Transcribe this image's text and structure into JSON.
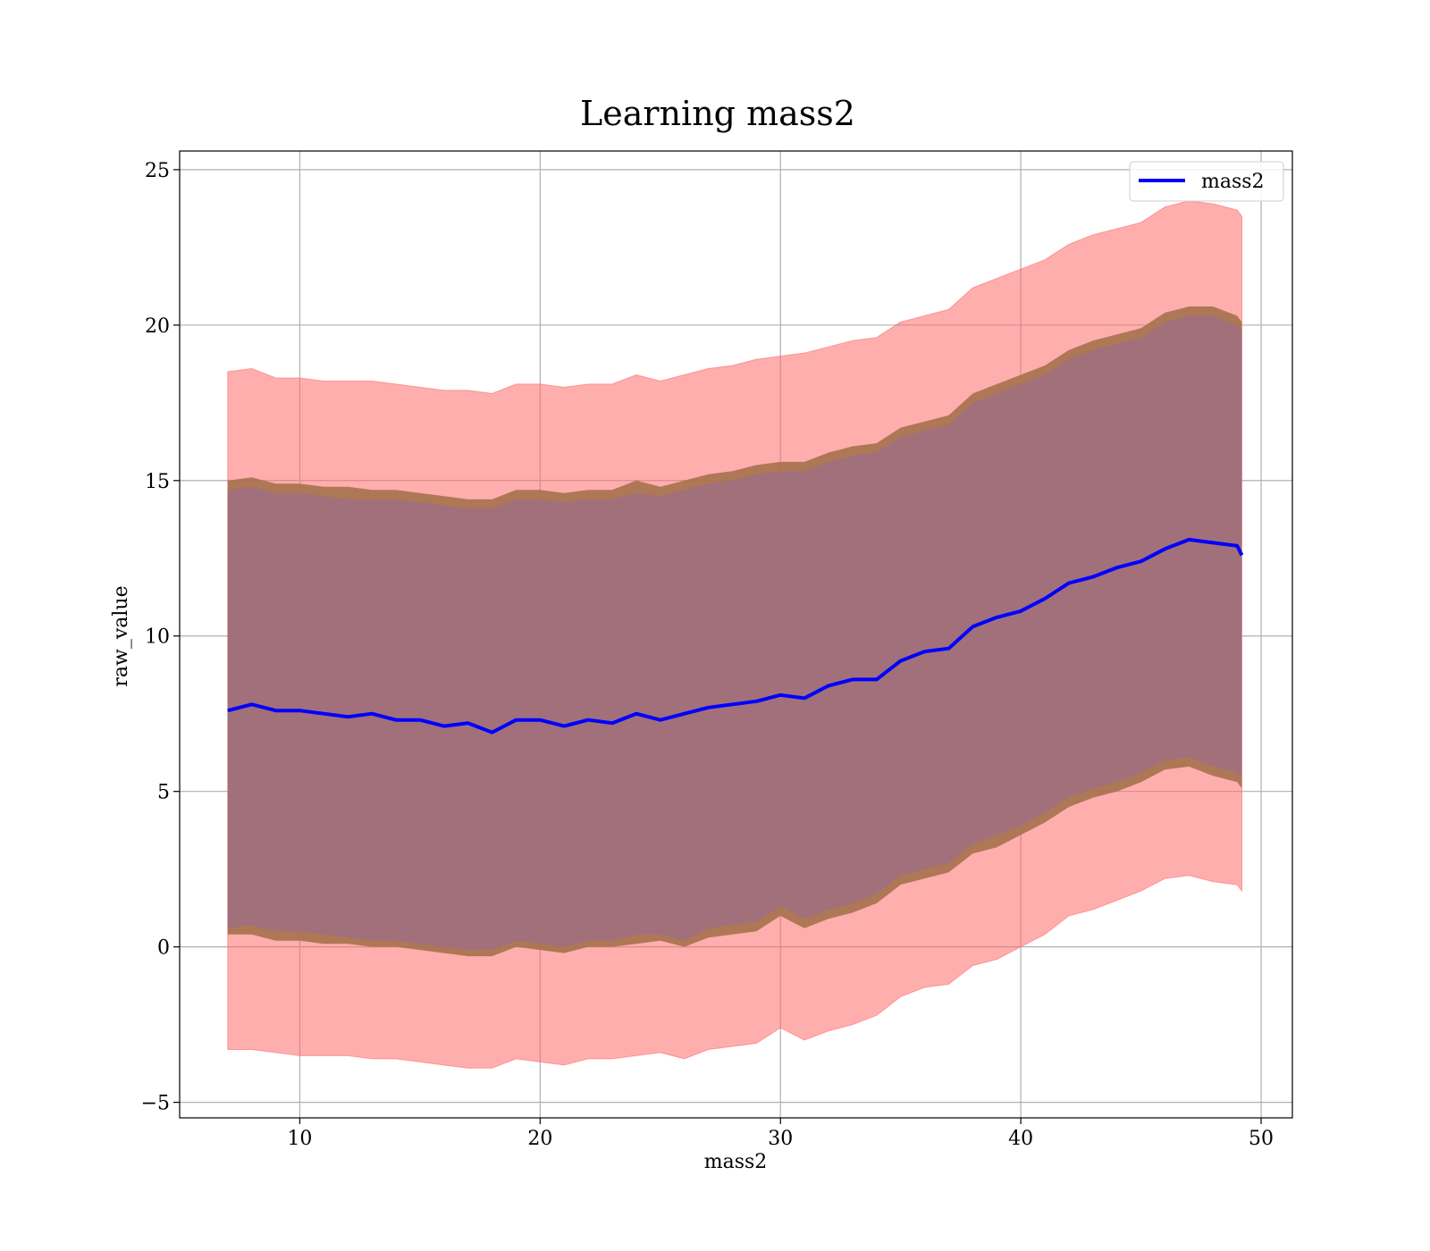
{
  "chart_data": {
    "type": "line",
    "title": "Learning mass2",
    "xlabel": "mass2",
    "ylabel": "raw_value",
    "xlim": [
      5,
      51.3
    ],
    "ylim": [
      -5.5,
      25.6
    ],
    "xticks": [
      10,
      20,
      30,
      40,
      50
    ],
    "yticks": [
      -5,
      0,
      5,
      10,
      15,
      20,
      25
    ],
    "xtick_labels": [
      "10",
      "20",
      "30",
      "40",
      "50"
    ],
    "ytick_labels": [
      "−5",
      "0",
      "5",
      "10",
      "15",
      "20",
      "25"
    ],
    "grid": true,
    "legend": {
      "position": "top-right",
      "entries": [
        "mass2"
      ]
    },
    "colors": {
      "line": "#0000ff",
      "band_outer": "#ff6b6b",
      "band_middle": "#a5714d",
      "band_inner": "#a2707a",
      "grid": "#b0b0b0"
    },
    "x": [
      7.0,
      8.0,
      9.0,
      10.0,
      11.0,
      12.0,
      13.0,
      14.0,
      15.0,
      16.0,
      17.0,
      18.0,
      19.0,
      20.0,
      21.0,
      22.0,
      23.0,
      24.0,
      25.0,
      26.0,
      27.0,
      28.0,
      29.0,
      30.0,
      31.0,
      32.0,
      33.0,
      34.0,
      35.0,
      36.0,
      37.0,
      38.0,
      39.0,
      40.0,
      41.0,
      42.0,
      43.0,
      44.0,
      45.0,
      46.0,
      47.0,
      48.0,
      49.0,
      49.2
    ],
    "series": [
      {
        "name": "mass2",
        "values": [
          7.6,
          7.8,
          7.6,
          7.6,
          7.5,
          7.4,
          7.5,
          7.3,
          7.3,
          7.1,
          7.2,
          6.9,
          7.3,
          7.3,
          7.1,
          7.3,
          7.2,
          7.5,
          7.3,
          7.5,
          7.7,
          7.8,
          7.9,
          8.1,
          8.0,
          8.4,
          8.6,
          8.6,
          9.2,
          9.5,
          9.6,
          10.3,
          10.6,
          10.8,
          11.2,
          11.7,
          11.9,
          12.2,
          12.4,
          12.8,
          13.1,
          13.0,
          12.9,
          12.6
        ]
      }
    ],
    "bands": {
      "outer": {
        "lower": [
          -3.3,
          -3.3,
          -3.4,
          -3.5,
          -3.5,
          -3.5,
          -3.6,
          -3.6,
          -3.7,
          -3.8,
          -3.9,
          -3.9,
          -3.6,
          -3.7,
          -3.8,
          -3.6,
          -3.6,
          -3.5,
          -3.4,
          -3.6,
          -3.3,
          -3.2,
          -3.1,
          -2.6,
          -3.0,
          -2.7,
          -2.5,
          -2.2,
          -1.6,
          -1.3,
          -1.2,
          -0.6,
          -0.4,
          0.0,
          0.4,
          1.0,
          1.2,
          1.5,
          1.8,
          2.2,
          2.3,
          2.1,
          2.0,
          1.8
        ],
        "upper": [
          18.5,
          18.6,
          18.3,
          18.3,
          18.2,
          18.2,
          18.2,
          18.1,
          18.0,
          17.9,
          17.9,
          17.8,
          18.1,
          18.1,
          18.0,
          18.1,
          18.1,
          18.4,
          18.2,
          18.4,
          18.6,
          18.7,
          18.9,
          19.0,
          19.1,
          19.3,
          19.5,
          19.6,
          20.1,
          20.3,
          20.5,
          21.2,
          21.5,
          21.8,
          22.1,
          22.6,
          22.9,
          23.1,
          23.3,
          23.8,
          24.0,
          23.9,
          23.7,
          23.5
        ]
      },
      "middle": {
        "lower": [
          0.4,
          0.4,
          0.2,
          0.2,
          0.1,
          0.1,
          0.0,
          0.0,
          -0.1,
          -0.2,
          -0.3,
          -0.3,
          0.0,
          -0.1,
          -0.2,
          0.0,
          0.0,
          0.1,
          0.2,
          0.0,
          0.3,
          0.4,
          0.5,
          1.0,
          0.6,
          0.9,
          1.1,
          1.4,
          2.0,
          2.2,
          2.4,
          3.0,
          3.2,
          3.6,
          4.0,
          4.5,
          4.8,
          5.0,
          5.3,
          5.7,
          5.8,
          5.5,
          5.3,
          5.1
        ],
        "upper": [
          15.0,
          15.1,
          14.9,
          14.9,
          14.8,
          14.8,
          14.7,
          14.7,
          14.6,
          14.5,
          14.4,
          14.4,
          14.7,
          14.7,
          14.6,
          14.7,
          14.7,
          15.0,
          14.8,
          15.0,
          15.2,
          15.3,
          15.5,
          15.6,
          15.6,
          15.9,
          16.1,
          16.2,
          16.7,
          16.9,
          17.1,
          17.8,
          18.1,
          18.4,
          18.7,
          19.2,
          19.5,
          19.7,
          19.9,
          20.4,
          20.6,
          20.6,
          20.3,
          20.1
        ]
      },
      "inner": {
        "lower": [
          0.6,
          0.7,
          0.5,
          0.5,
          0.4,
          0.3,
          0.2,
          0.2,
          0.1,
          0.0,
          -0.1,
          -0.1,
          0.2,
          0.1,
          0.0,
          0.2,
          0.2,
          0.4,
          0.4,
          0.2,
          0.6,
          0.7,
          0.8,
          1.3,
          0.9,
          1.2,
          1.4,
          1.7,
          2.3,
          2.5,
          2.7,
          3.3,
          3.6,
          3.9,
          4.3,
          4.8,
          5.1,
          5.3,
          5.6,
          6.0,
          6.1,
          5.8,
          5.6,
          5.4
        ],
        "upper": [
          14.7,
          14.8,
          14.6,
          14.6,
          14.5,
          14.4,
          14.4,
          14.4,
          14.3,
          14.2,
          14.1,
          14.1,
          14.4,
          14.4,
          14.3,
          14.4,
          14.4,
          14.6,
          14.5,
          14.7,
          14.9,
          15.0,
          15.2,
          15.3,
          15.3,
          15.6,
          15.8,
          15.9,
          16.4,
          16.6,
          16.8,
          17.5,
          17.8,
          18.1,
          18.4,
          18.9,
          19.2,
          19.4,
          19.6,
          20.1,
          20.3,
          20.3,
          20.0,
          19.8
        ]
      }
    }
  }
}
